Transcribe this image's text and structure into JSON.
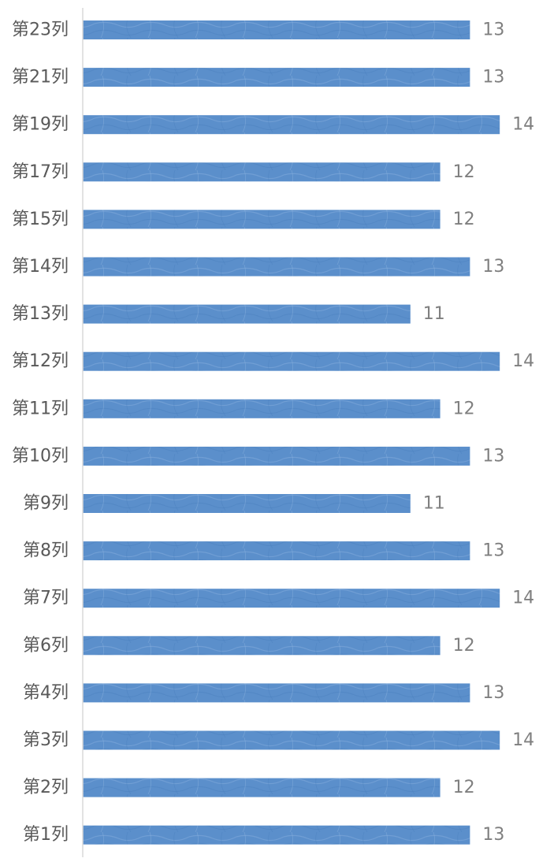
{
  "chart_data": {
    "type": "bar",
    "orientation": "horizontal",
    "categories": [
      "第23列",
      "第21列",
      "第19列",
      "第17列",
      "第15列",
      "第14列",
      "第13列",
      "第12列",
      "第11列",
      "第10列",
      "第9列",
      "第8列",
      "第7列",
      "第6列",
      "第4列",
      "第3列",
      "第2列",
      "第1列"
    ],
    "values": [
      13,
      13,
      14,
      12,
      12,
      13,
      11,
      14,
      12,
      13,
      11,
      13,
      14,
      12,
      13,
      14,
      12,
      13
    ],
    "title": "",
    "xlabel": "",
    "ylabel": "",
    "xlim": [
      0,
      14
    ],
    "grid": false,
    "legend": "none",
    "data_labels": true
  },
  "colors": {
    "bar": "#5b8fcb",
    "bar_light": "#7aa6d8",
    "axis": "#d9d9d9",
    "category_text": "#595959",
    "value_text": "#7f7f7f"
  }
}
